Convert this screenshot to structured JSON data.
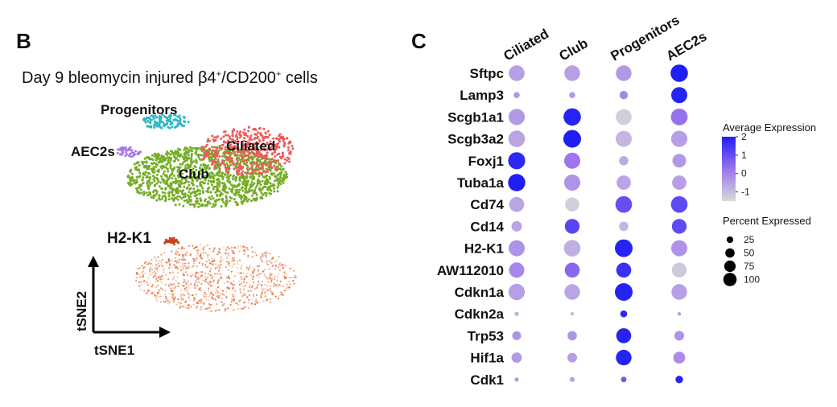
{
  "panel_b": {
    "letter": "B",
    "title_parts": [
      "Day 9 bleomycin injured β4",
      "+",
      "/CD200",
      "+",
      " cells"
    ],
    "clusters": [
      {
        "label": "Progenitors",
        "color": "#2bb8c4"
      },
      {
        "label": "Ciliated",
        "color": "#ee5a5a"
      },
      {
        "label": "AEC2s",
        "color": "#a777ee"
      },
      {
        "label": "Club",
        "color": "#75ad26"
      }
    ],
    "feature_plot": {
      "gene": "H2-K1",
      "color": "#e0662a"
    },
    "axes": {
      "x": "tSNE1",
      "y": "tSNE2"
    }
  },
  "panel_c": {
    "letter": "C",
    "color_legend": {
      "title": "Average Expression",
      "ticks": [
        "2",
        "1",
        "0",
        "-1"
      ],
      "low_color": "#d9d9d9",
      "high_color": "#1f1ff5"
    },
    "size_legend": {
      "title": "Percent Expressed",
      "ticks": [
        "25",
        "50",
        "75",
        "100"
      ]
    }
  },
  "chart_data": {
    "type": "dotplot",
    "x_categories": [
      "Ciliated",
      "Club",
      "Progenitors",
      "AEC2s"
    ],
    "genes": [
      "Sftpc",
      "Lamp3",
      "Scgb1a1",
      "Scgb3a2",
      "Foxj1",
      "Tuba1a",
      "Cd74",
      "Cd14",
      "H2-K1",
      "AW112010",
      "Cdkn1a",
      "Cdkn2a",
      "Trp53",
      "Hif1a",
      "Cdk1"
    ],
    "avg_expression": [
      [
        -0.5,
        -0.5,
        -0.4,
        2.0
      ],
      [
        -0.4,
        -0.4,
        -0.1,
        1.9
      ],
      [
        -0.4,
        1.9,
        -1.3,
        0.3
      ],
      [
        -0.6,
        2.0,
        -0.9,
        -0.5
      ],
      [
        1.8,
        0.2,
        -0.7,
        -0.4
      ],
      [
        2.0,
        -0.3,
        -0.6,
        -0.5
      ],
      [
        -0.6,
        -1.3,
        1.0,
        1.1
      ],
      [
        -0.6,
        1.2,
        -0.9,
        1.1
      ],
      [
        -0.3,
        -0.8,
        1.9,
        -0.3
      ],
      [
        -0.1,
        0.5,
        1.6,
        -1.2
      ],
      [
        -0.5,
        -0.6,
        1.9,
        -0.5
      ],
      [
        -0.8,
        -0.9,
        1.8,
        -0.5
      ],
      [
        -0.3,
        -0.3,
        1.9,
        -0.3
      ],
      [
        -0.4,
        -0.5,
        1.9,
        -0.2
      ],
      [
        -0.5,
        -0.5,
        0.8,
        1.9
      ]
    ],
    "pct_expressed": [
      [
        80,
        80,
        78,
        97
      ],
      [
        12,
        12,
        22,
        82
      ],
      [
        85,
        97,
        80,
        90
      ],
      [
        88,
        100,
        82,
        85
      ],
      [
        92,
        82,
        28,
        60
      ],
      [
        94,
        82,
        65,
        65
      ],
      [
        72,
        62,
        88,
        88
      ],
      [
        35,
        70,
        28,
        70
      ],
      [
        82,
        88,
        100,
        82
      ],
      [
        75,
        72,
        72,
        70
      ],
      [
        84,
        78,
        100,
        78
      ],
      [
        6,
        4,
        15,
        4
      ],
      [
        25,
        28,
        72,
        30
      ],
      [
        34,
        30,
        78,
        45
      ],
      [
        6,
        8,
        10,
        18
      ]
    ],
    "color_range": [
      -1.5,
      2
    ],
    "size_range": [
      0,
      100
    ]
  }
}
